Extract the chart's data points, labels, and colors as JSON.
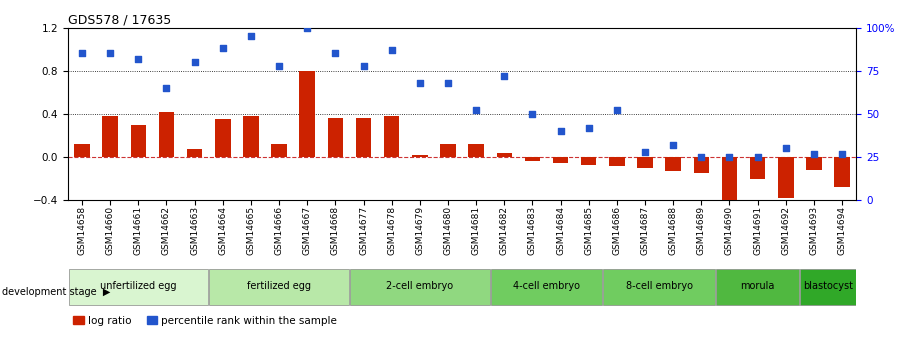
{
  "title": "GDS578 / 17635",
  "samples": [
    "GSM14658",
    "GSM14660",
    "GSM14661",
    "GSM14662",
    "GSM14663",
    "GSM14664",
    "GSM14665",
    "GSM14666",
    "GSM14667",
    "GSM14668",
    "GSM14677",
    "GSM14678",
    "GSM14679",
    "GSM14680",
    "GSM14681",
    "GSM14682",
    "GSM14683",
    "GSM14684",
    "GSM14685",
    "GSM14686",
    "GSM14687",
    "GSM14688",
    "GSM14689",
    "GSM14690",
    "GSM14691",
    "GSM14692",
    "GSM14693",
    "GSM14694"
  ],
  "log_ratio": [
    0.12,
    0.38,
    0.3,
    0.42,
    0.07,
    0.35,
    0.38,
    0.12,
    0.8,
    0.36,
    0.36,
    0.38,
    0.02,
    0.12,
    0.12,
    0.04,
    -0.04,
    -0.06,
    -0.07,
    -0.08,
    -0.1,
    -0.13,
    -0.15,
    -0.55,
    -0.2,
    -0.38,
    -0.12,
    -0.28
  ],
  "percentile": [
    85,
    85,
    82,
    65,
    80,
    88,
    95,
    78,
    100,
    85,
    78,
    87,
    68,
    68,
    52,
    72,
    50,
    40,
    42,
    52,
    28,
    32,
    25,
    25,
    25,
    30,
    27,
    27
  ],
  "stage_groups": [
    {
      "label": "unfertilized egg",
      "start": 0,
      "end": 5,
      "color": "#d9f5d0"
    },
    {
      "label": "fertilized egg",
      "start": 5,
      "end": 10,
      "color": "#b8e8a8"
    },
    {
      "label": "2-cell embryo",
      "start": 10,
      "end": 15,
      "color": "#90d880"
    },
    {
      "label": "4-cell embryo",
      "start": 15,
      "end": 19,
      "color": "#70cc60"
    },
    {
      "label": "8-cell embryo",
      "start": 19,
      "end": 23,
      "color": "#70cc60"
    },
    {
      "label": "morula",
      "start": 23,
      "end": 26,
      "color": "#50b840"
    },
    {
      "label": "blastocyst",
      "start": 26,
      "end": 28,
      "color": "#30a828"
    }
  ],
  "ylim_left": [
    -0.4,
    1.2
  ],
  "ylim_right": [
    0,
    100
  ],
  "bar_color": "#cc2200",
  "dot_color": "#2255cc",
  "zero_line_color": "#cc3333",
  "background_color": "#ffffff"
}
